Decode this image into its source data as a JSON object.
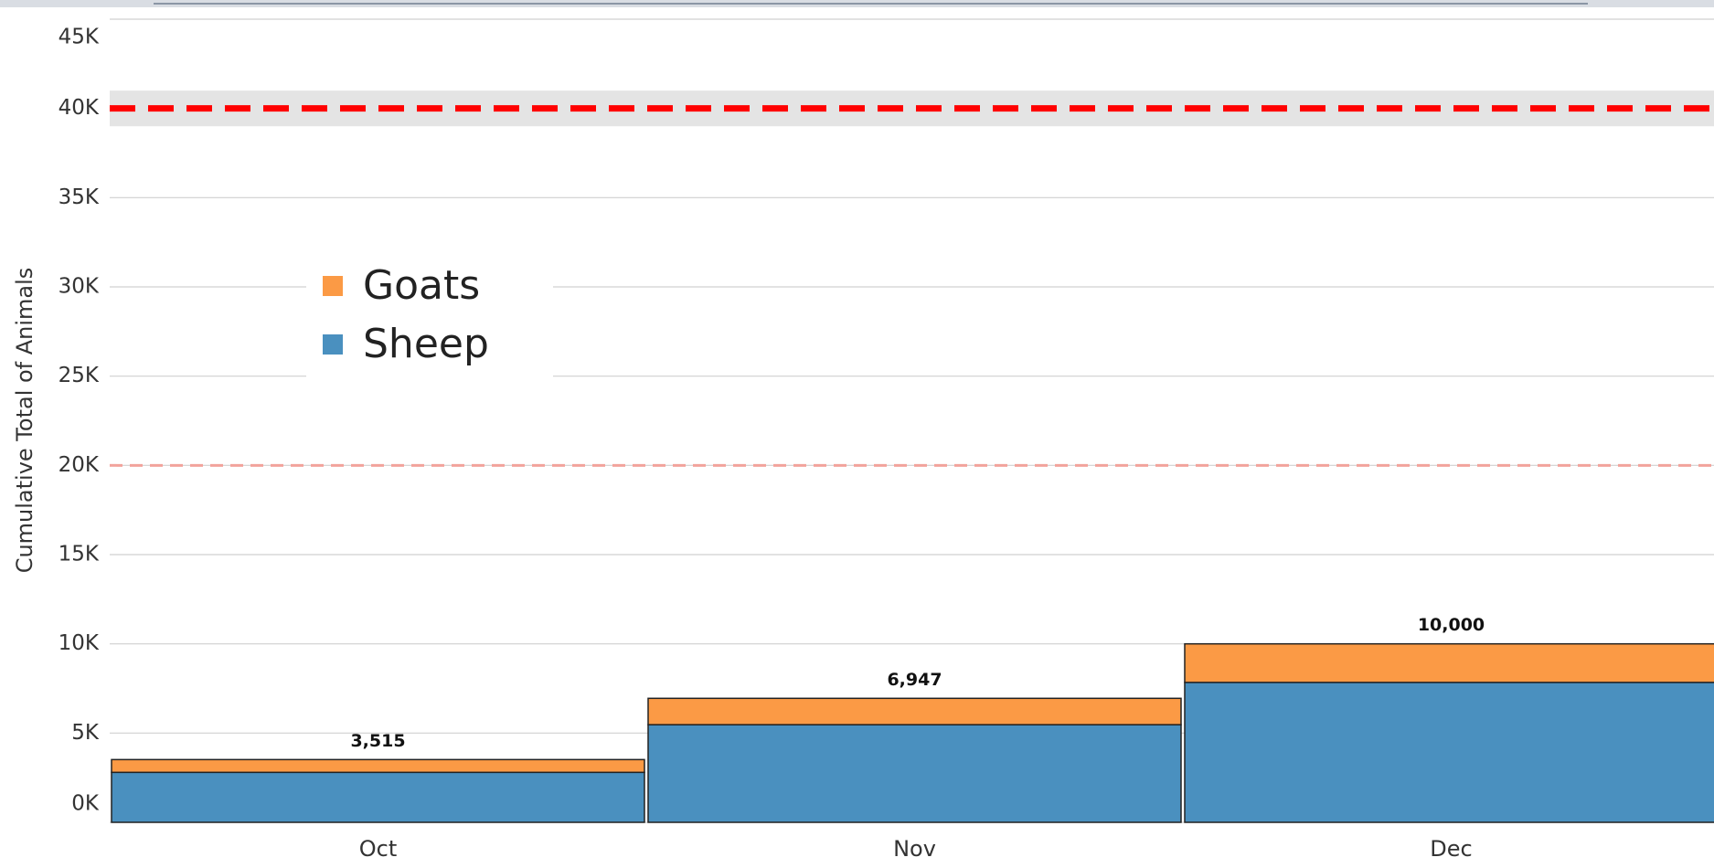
{
  "chart_data": {
    "type": "stacked_bar",
    "ylabel": "Cumulative Total of Animals",
    "categories": [
      "Oct",
      "Nov",
      "Dec"
    ],
    "series": [
      {
        "name": "Sheep",
        "color": "#4a90bf",
        "values": [
          2800,
          5470,
          7840
        ]
      },
      {
        "name": "Goats",
        "color": "#fb9a45",
        "values": [
          715,
          1477,
          2160
        ]
      }
    ],
    "totals": {
      "values": [
        3515,
        6947,
        10000
      ],
      "value_labels": [
        "3,515",
        "6,947",
        "10,000"
      ]
    },
    "reference_lines": [
      {
        "value": 40000,
        "color": "#ff0000",
        "band": [
          39000,
          41000
        ]
      },
      {
        "value": 20000,
        "color": "#f2a39c"
      }
    ],
    "ylim": [
      0,
      45000
    ],
    "yticks": [
      {
        "value": 0,
        "label": "0K"
      },
      {
        "value": 5000,
        "label": "5K"
      },
      {
        "value": 10000,
        "label": "10K"
      },
      {
        "value": 15000,
        "label": "15K"
      },
      {
        "value": 20000,
        "label": "20K"
      },
      {
        "value": 25000,
        "label": "25K"
      },
      {
        "value": 30000,
        "label": "30K"
      },
      {
        "value": 35000,
        "label": "35K"
      },
      {
        "value": 40000,
        "label": "40K"
      },
      {
        "value": 45000,
        "label": "45K"
      }
    ],
    "grid": true
  }
}
